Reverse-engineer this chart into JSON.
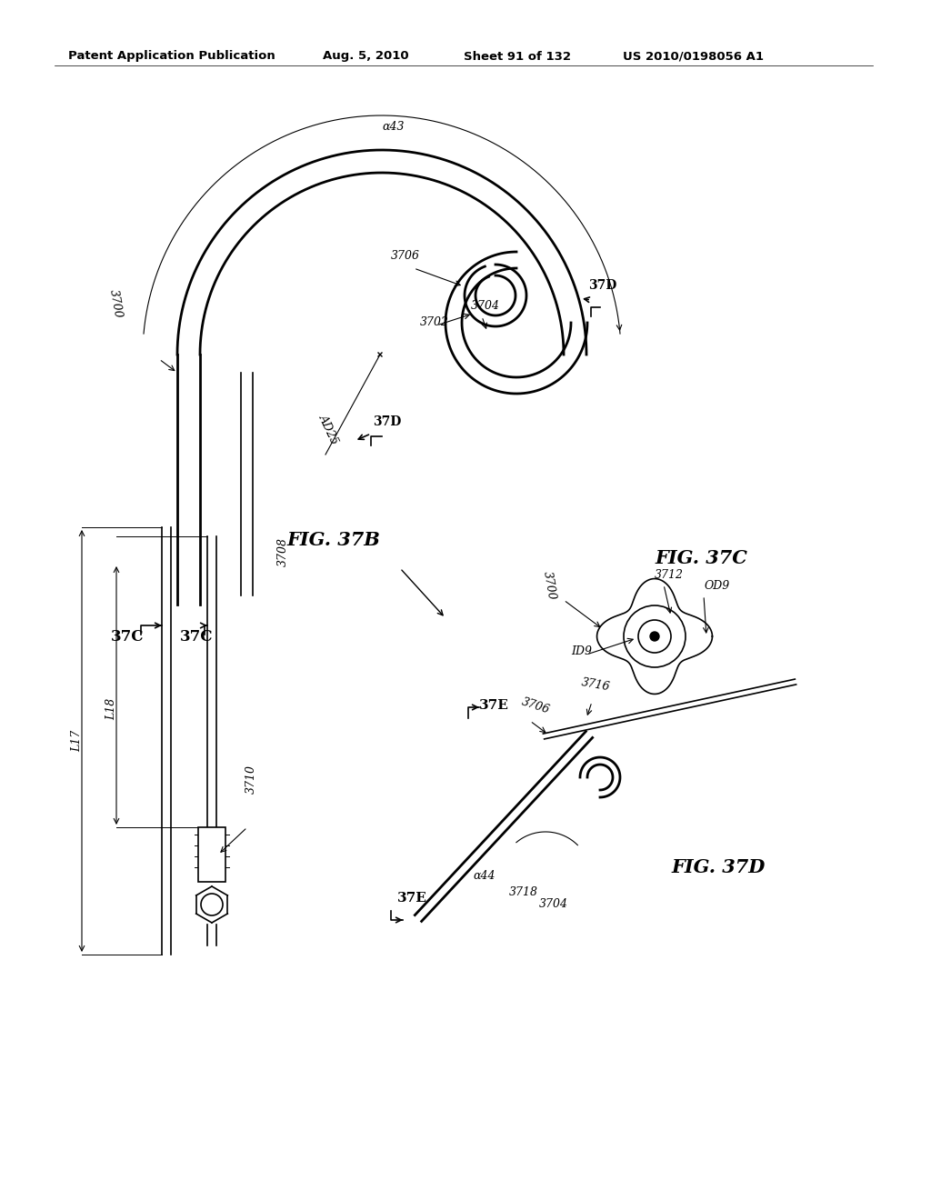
{
  "bg_color": "#ffffff",
  "line_color": "#000000",
  "header_text": "Patent Application Publication",
  "header_date": "Aug. 5, 2010",
  "header_sheet": "Sheet 91 of 132",
  "header_patent": "US 2010/0198056 A1",
  "fig37b_label": "FIG. 37B",
  "fig37c_label": "FIG. 37C",
  "fig37d_label": "FIG. 37D"
}
